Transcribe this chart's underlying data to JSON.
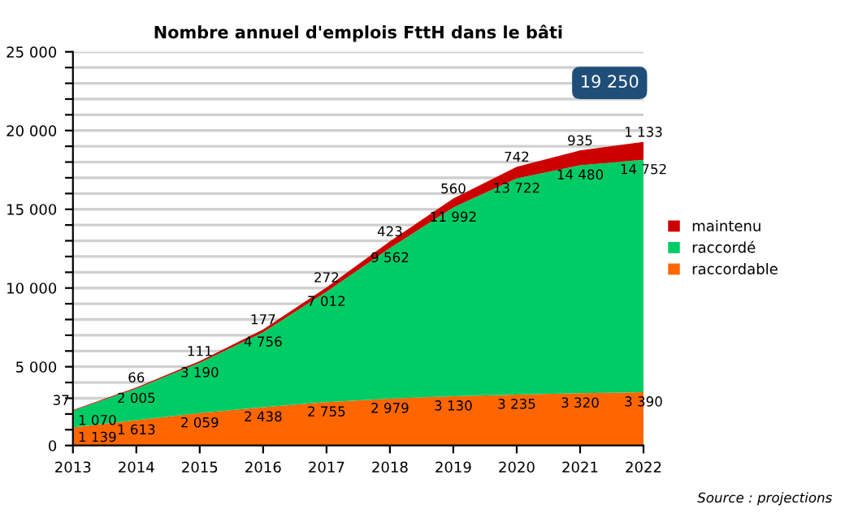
{
  "chart_data": {
    "type": "area",
    "stacked": true,
    "title": "Nombre annuel d'emplois FttH dans le bâti",
    "categories": [
      "2013",
      "2014",
      "2015",
      "2016",
      "2017",
      "2018",
      "2019",
      "2020",
      "2021",
      "2022"
    ],
    "series": [
      {
        "name": "raccordable",
        "color": "#ff6600",
        "values": [
          1139,
          1613,
          2059,
          2438,
          2755,
          2979,
          3130,
          3235,
          3320,
          3390
        ]
      },
      {
        "name": "raccordé",
        "color": "#00cc66",
        "values": [
          1070,
          2005,
          3190,
          4756,
          7012,
          9562,
          11992,
          13722,
          14480,
          14752
        ]
      },
      {
        "name": "maintenu",
        "color": "#cc0000",
        "values": [
          37,
          66,
          111,
          177,
          272,
          423,
          560,
          742,
          935,
          1133
        ]
      }
    ],
    "ylim": [
      0,
      25000
    ],
    "yticks": [
      0,
      {
        "value": 1000,
        "label": null
      },
      {
        "value": 2000,
        "label": null
      },
      {
        "value": 3000,
        "label": null
      },
      {
        "value": 4000,
        "label": null
      },
      {
        "value": 5000,
        "label": "5 000"
      },
      {
        "value": 6000,
        "label": null
      },
      {
        "value": 7000,
        "label": null
      },
      {
        "value": 8000,
        "label": null
      },
      {
        "value": 9000,
        "label": null
      },
      {
        "value": 10000,
        "label": "10 000"
      },
      {
        "value": 11000,
        "label": null
      },
      {
        "value": 12000,
        "label": null
      },
      {
        "value": 13000,
        "label": null
      },
      {
        "value": 14000,
        "label": null
      },
      {
        "value": 15000,
        "label": "15 000"
      },
      {
        "value": 16000,
        "label": null
      },
      {
        "value": 17000,
        "label": null
      },
      {
        "value": 18000,
        "label": null
      },
      {
        "value": 19000,
        "label": null
      },
      {
        "value": 20000,
        "label": "20 000"
      },
      {
        "value": 21000,
        "label": null
      },
      {
        "value": 22000,
        "label": null
      },
      {
        "value": 23000,
        "label": null
      },
      {
        "value": 24000,
        "label": null
      },
      {
        "value": 25000,
        "label": "25 000"
      }
    ],
    "grid": "y",
    "legend": "right",
    "data_labels": true,
    "annotations": [
      "19 250",
      "Source : projections"
    ]
  }
}
